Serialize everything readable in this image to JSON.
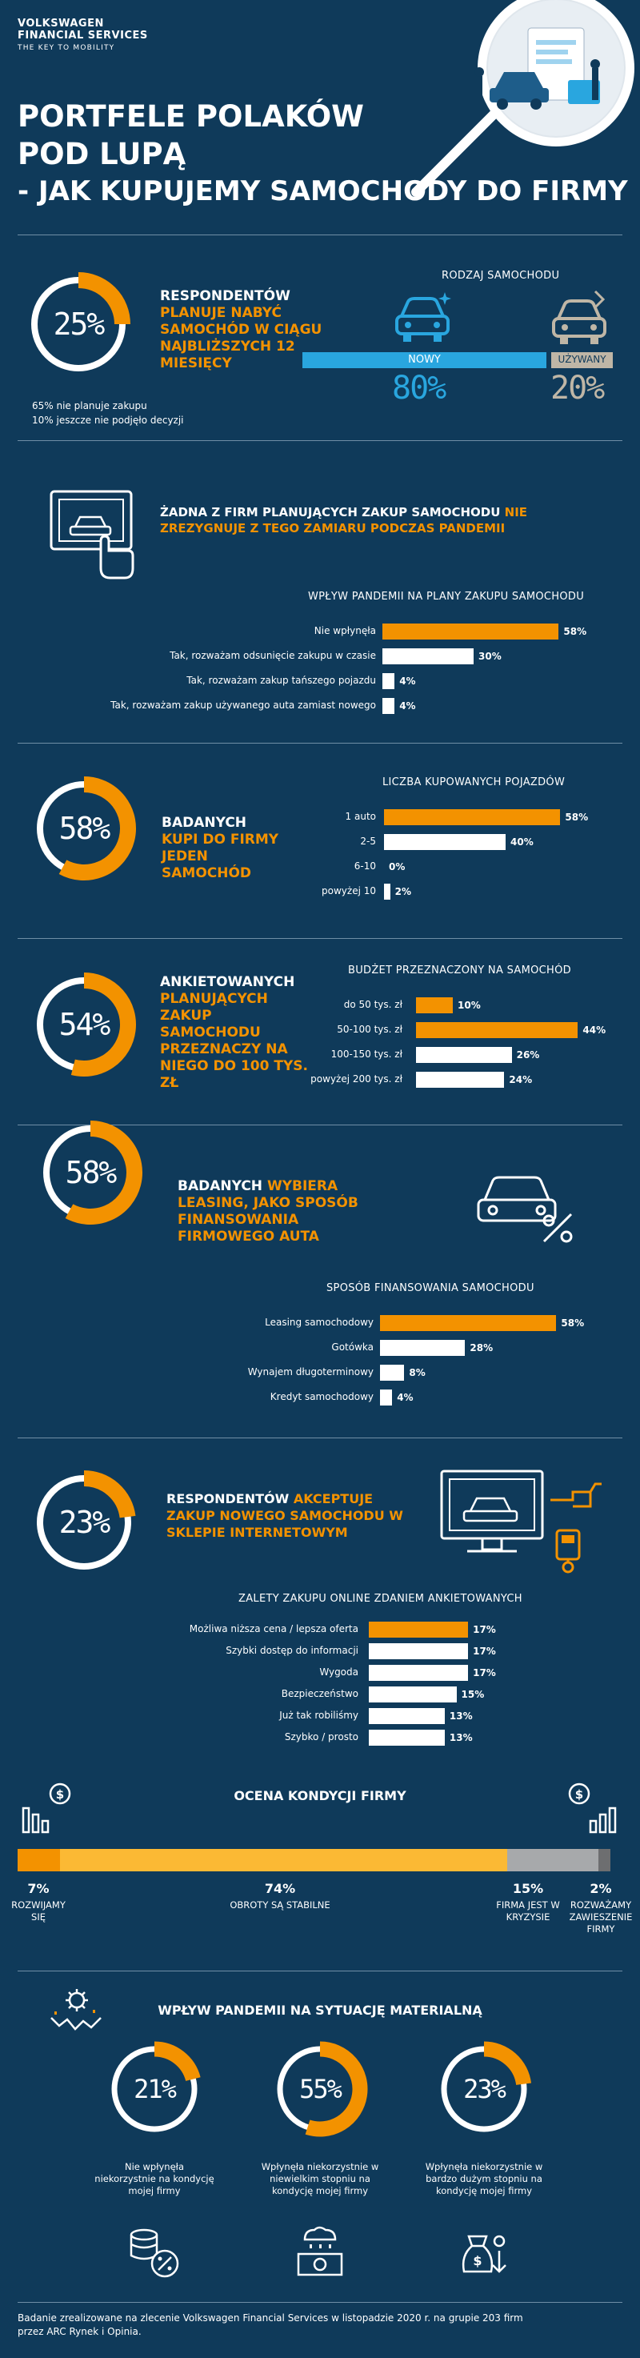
{
  "brand": {
    "line1": "VOLKSWAGEN",
    "line2": "FINANCIAL SERVICES",
    "tagline": "THE KEY TO MOBILITY"
  },
  "title": {
    "line1": "PORTFELE POLAKÓW",
    "line2": "POD LUPĄ",
    "line3": "- JAK KUPUJEMY SAMOCHODY DO FIRMY"
  },
  "section1": {
    "ring_value": "25%",
    "ring_fraction": 0.25,
    "head_white": "RESPONDENTÓW",
    "head_orange": "PLANUJE NABYĆ SAMOCHÓD W CIĄGU NAJBLIŻSZYCH 12 MIESIĘCY",
    "note1": "65% nie planuje zakupu",
    "note2": "10% jeszcze nie podjęło decyzji",
    "car_type_title": "RODZAJ SAMOCHODU",
    "new_label": "NOWY",
    "new_value": "80%",
    "used_label": "UŻYWANY",
    "used_value": "20%",
    "colors": {
      "new": "#29a6df",
      "used": "#bfb6a6"
    }
  },
  "section2": {
    "head_white": "ŻADNA Z FIRM PLANUJĄCYCH ZAKUP SAMOCHODU",
    "head_orange": "NIE ZREZYGNUJE Z TEGO ZAMIARU PODCZAS PANDEMII",
    "icon": "touch-screen-car-icon"
  },
  "section3": {
    "ring_value": "58%",
    "ring_fraction": 0.58,
    "head_white": "BADANYCH",
    "head_orange": "KUPI DO FIRMY JEDEN SAMOCHÓD"
  },
  "section4": {
    "ring_value": "54%",
    "ring_fraction": 0.54,
    "head_white": "ANKIETOWANYCH",
    "head_orange": "PLANUJĄCYCH ZAKUP SAMOCHODU PRZEZNACZY NA NIEGO DO 100 TYS. ZŁ"
  },
  "section5": {
    "ring_value": "58%",
    "ring_fraction": 0.58,
    "head_white": "BADANYCH",
    "head_orange": "WYBIERA LEASING, JAKO SPOSÓB FINANSOWANIA FIRMOWEGO AUTA",
    "icon": "car-percent-icon"
  },
  "section6": {
    "ring_value": "23%",
    "ring_fraction": 0.23,
    "head_white": "RESPONDENTÓW",
    "head_orange": "AKCEPTUJE ZAKUP NOWEGO SAMOCHODU W SKLEPIE INTERNETOWYM",
    "icon": "online-car-shop-icon"
  },
  "section7": {
    "title": "OCENA KONDYCJI FIRMY",
    "segments": [
      {
        "value": "7%",
        "label": "ROZWIJAMY SIĘ",
        "fraction": 0.07,
        "color": "#f39200"
      },
      {
        "value": "74%",
        "label": "OBROTY SĄ STABILNE",
        "fraction": 0.74,
        "color": "#fbb934"
      },
      {
        "value": "15%",
        "label": "FIRMA JEST W KRYZYSIE",
        "fraction": 0.15,
        "color": "#a7a9ab"
      },
      {
        "value": "2%",
        "label": "ROZWAŻAMY ZAWIESZENIE FIRMY",
        "fraction": 0.02,
        "color": "#6d6e70"
      }
    ]
  },
  "section8": {
    "title": "WPŁYW PANDEMII NA SYTUACJĘ MATERIALNĄ",
    "items": [
      {
        "value": "21%",
        "fraction": 0.21,
        "label": "Nie wpłynęła niekorzystnie na kondycję mojej firmy",
        "icon": "coins-percent-icon"
      },
      {
        "value": "55%",
        "fraction": 0.55,
        "label": "Wpłynęła niekorzystnie w niewielkim stopniu na kondycję mojej firmy",
        "icon": "money-rain-icon"
      },
      {
        "value": "23%",
        "fraction": 0.23,
        "label": "Wpłynęła niekorzystnie w bardzo dużym stopniu na kondycję mojej firmy",
        "icon": "money-drop-icon"
      }
    ]
  },
  "footer": {
    "line1": "Badanie zrealizowane na zlecenie Volkswagen Financial Services w listopadzie 2020 r. na grupie 203 firm",
    "line2": "przez ARC Rynek i Opinia."
  },
  "chart_data": [
    {
      "type": "bar",
      "title": "WPŁYW PANDEMII NA PLANY ZAKUPU SAMOCHODU",
      "categories": [
        "Nie wpłynęła",
        "Tak, rozważam odsunięcie zakupu w czasie",
        "Tak, rozważam zakup tańszego pojazdu",
        "Tak, rozważam zakup używanego auta zamiast nowego"
      ],
      "values": [
        58,
        30,
        4,
        4
      ],
      "value_labels": [
        "58%",
        "30%",
        "4%",
        "4%"
      ],
      "highlight_first": true
    },
    {
      "type": "bar",
      "title": "LICZBA KUPOWANYCH POJAZDÓW",
      "categories": [
        "1 auto",
        "2-5",
        "6-10",
        "powyżej 10"
      ],
      "values": [
        58,
        40,
        0,
        2
      ],
      "value_labels": [
        "58%",
        "40%",
        "0%",
        "2%"
      ],
      "highlight_first": true
    },
    {
      "type": "bar",
      "title": "BUDŻET PRZEZNACZONY NA SAMOCHÓD",
      "categories": [
        "do 50 tys. zł",
        "50-100 tys. zł",
        "100-150  tys. zł",
        "powyżej 200 tys. zł"
      ],
      "values": [
        10,
        44,
        26,
        24
      ],
      "value_labels": [
        "10%",
        "44%",
        "26%",
        "24%"
      ],
      "highlight": [
        0,
        1
      ]
    },
    {
      "type": "bar",
      "title": "SPOSÓB FINANSOWANIA SAMOCHODU",
      "categories": [
        "Leasing samochodowy",
        "Gotówka",
        "Wynajem długoterminowy",
        "Kredyt samochodowy"
      ],
      "values": [
        58,
        28,
        8,
        4
      ],
      "value_labels": [
        "58%",
        "28%",
        "8%",
        "4%"
      ],
      "highlight_first": true
    },
    {
      "type": "bar",
      "title": "ZALETY ZAKUPU ONLINE ZDANIEM ANKIETOWANYCH",
      "categories": [
        "Możliwa niższa cena / lepsza oferta",
        "Szybki dostęp do informacji",
        "Wygoda",
        "Bezpieczeństwo",
        "Już tak robiliśmy",
        "Szybko / prosto"
      ],
      "values": [
        17,
        17,
        17,
        15,
        13,
        13
      ],
      "value_labels": [
        "17%",
        "17%",
        "17%",
        "15%",
        "13%",
        "13%"
      ],
      "highlight_first": true
    }
  ]
}
